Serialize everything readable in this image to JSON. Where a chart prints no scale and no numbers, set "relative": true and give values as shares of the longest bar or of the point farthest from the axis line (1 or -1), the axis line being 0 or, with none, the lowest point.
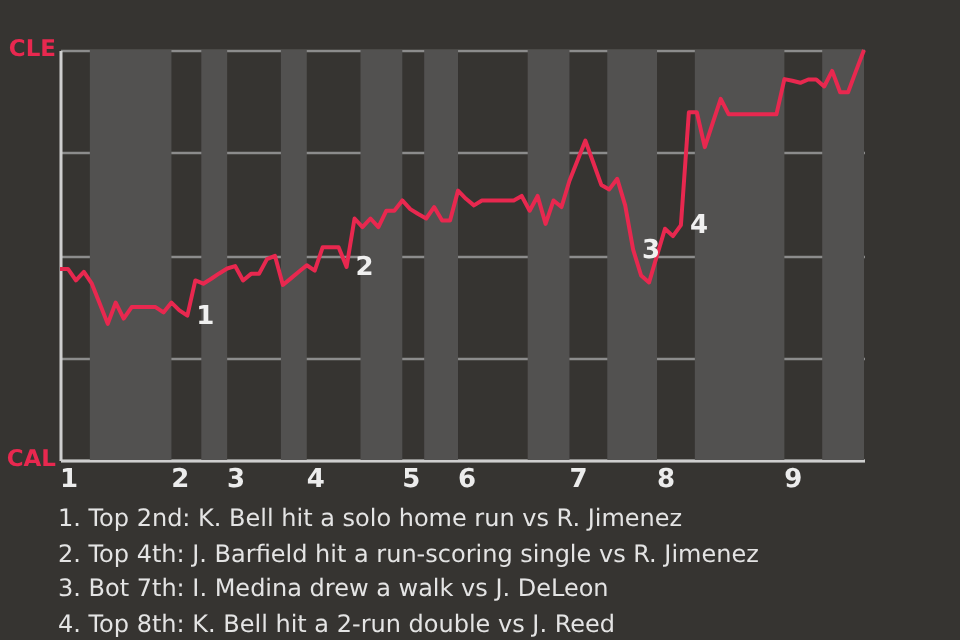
{
  "chart_data": {
    "type": "line",
    "relative": true,
    "tick_labels": "x",
    "categories": [
      null,
      "1",
      null,
      null,
      null,
      null,
      null,
      null,
      null,
      null,
      null,
      null,
      null,
      null,
      null,
      "2",
      null,
      null,
      null,
      null,
      null,
      null,
      "3",
      null,
      null,
      null,
      null,
      null,
      null,
      null,
      null,
      null,
      "4",
      null,
      null,
      null,
      null,
      null,
      null,
      null,
      null,
      null,
      null,
      null,
      "5",
      null,
      null,
      null,
      null,
      null,
      null,
      "6",
      null,
      null,
      null,
      null,
      null,
      null,
      null,
      null,
      null,
      null,
      null,
      null,
      null,
      "7",
      null,
      null,
      null,
      null,
      null,
      null,
      null,
      null,
      null,
      null,
      "8",
      null,
      null,
      null,
      null,
      null,
      null,
      null,
      null,
      null,
      null,
      null,
      null,
      null,
      null,
      null,
      "9",
      null,
      null,
      null,
      null,
      null,
      null,
      null,
      null,
      null
    ],
    "series": [
      {
        "color": "#e8284f",
        "values": [
          0.466,
          0.466,
          0.438,
          0.459,
          0.43,
          0.381,
          0.332,
          0.384,
          0.345,
          0.373,
          0.373,
          0.373,
          0.373,
          0.36,
          0.384,
          0.365,
          0.352,
          0.438,
          0.43,
          0.442,
          0.455,
          0.467,
          0.473,
          0.438,
          0.454,
          0.454,
          0.49,
          0.498,
          0.427,
          0.443,
          0.459,
          0.475,
          0.462,
          0.519,
          0.519,
          0.519,
          0.471,
          0.589,
          0.568,
          0.589,
          0.568,
          0.608,
          0.608,
          0.633,
          0.612,
          0.6,
          0.589,
          0.617,
          0.584,
          0.584,
          0.657,
          0.637,
          0.621,
          0.633,
          0.633,
          0.633,
          0.633,
          0.633,
          0.644,
          0.608,
          0.644,
          0.576,
          0.633,
          0.617,
          0.681,
          0.73,
          0.779,
          0.725,
          0.671,
          0.66,
          0.686,
          0.621,
          0.513,
          0.45,
          0.433,
          0.499,
          0.564,
          0.546,
          0.573,
          0.848,
          0.848,
          0.763,
          0.822,
          0.881,
          0.843,
          0.843,
          0.843,
          0.843,
          0.843,
          0.843,
          0.843,
          0.929,
          0.925,
          0.92,
          0.928,
          0.928,
          0.911,
          0.949,
          0.897,
          0.897,
          0.949,
          1.0
        ]
      }
    ],
    "grid": "y",
    "annotations": [
      "CLE",
      "CAL",
      "1",
      "2",
      "3",
      "4",
      "1. Top 2nd: K. Bell hit a solo home run vs R. Jimenez",
      "2. Top 4th: J. Barfield hit a run-scoring single vs R. Jimenez",
      "3. Bot 7th: I. Medina drew a walk vs J. DeLeon",
      "4. Top 8th: K. Bell hit a 2-run double vs J. Reed"
    ]
  }
}
